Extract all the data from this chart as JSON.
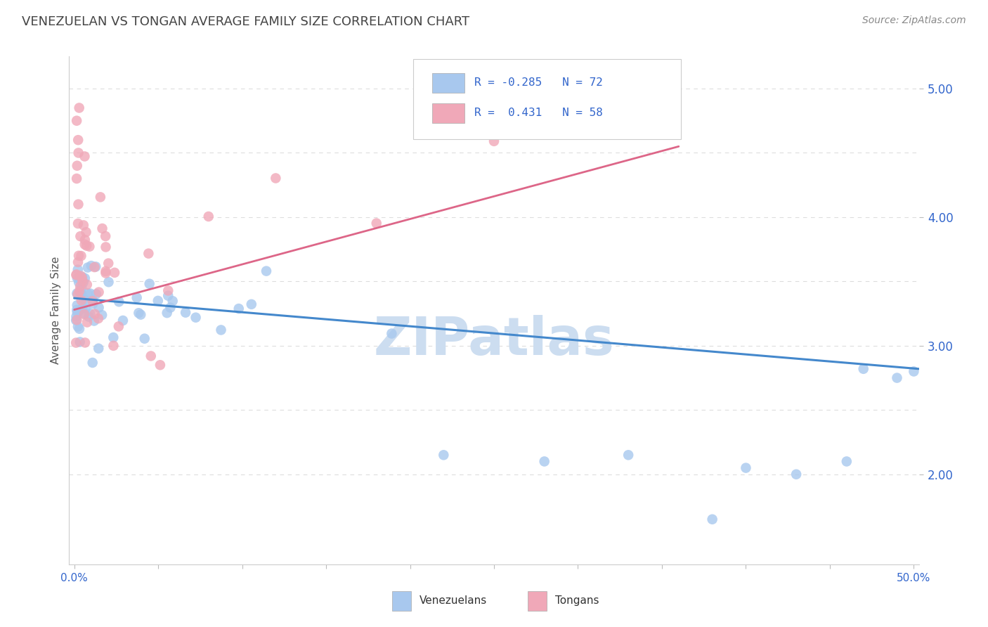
{
  "title": "VENEZUELAN VS TONGAN AVERAGE FAMILY SIZE CORRELATION CHART",
  "source_text": "Source: ZipAtlas.com",
  "ylabel": "Average Family Size",
  "ylim": [
    1.3,
    5.25
  ],
  "xlim": [
    -0.003,
    0.503
  ],
  "venezuelan_R": -0.285,
  "venezuelan_N": 72,
  "tongan_R": 0.431,
  "tongan_N": 58,
  "blue_color": "#A8C8EE",
  "pink_color": "#F0A8B8",
  "blue_line_color": "#4488CC",
  "pink_line_color": "#DD6688",
  "title_color": "#444444",
  "source_color": "#888888",
  "watermark_color": "#CCDDF0",
  "grid_color": "#DDDDDD",
  "background_color": "#FFFFFF",
  "ytick_positions": [
    2.0,
    3.0,
    4.0,
    5.0
  ],
  "xtick_count": 11,
  "legend_r_color": "#3366CC",
  "legend_n_color": "#3366CC"
}
